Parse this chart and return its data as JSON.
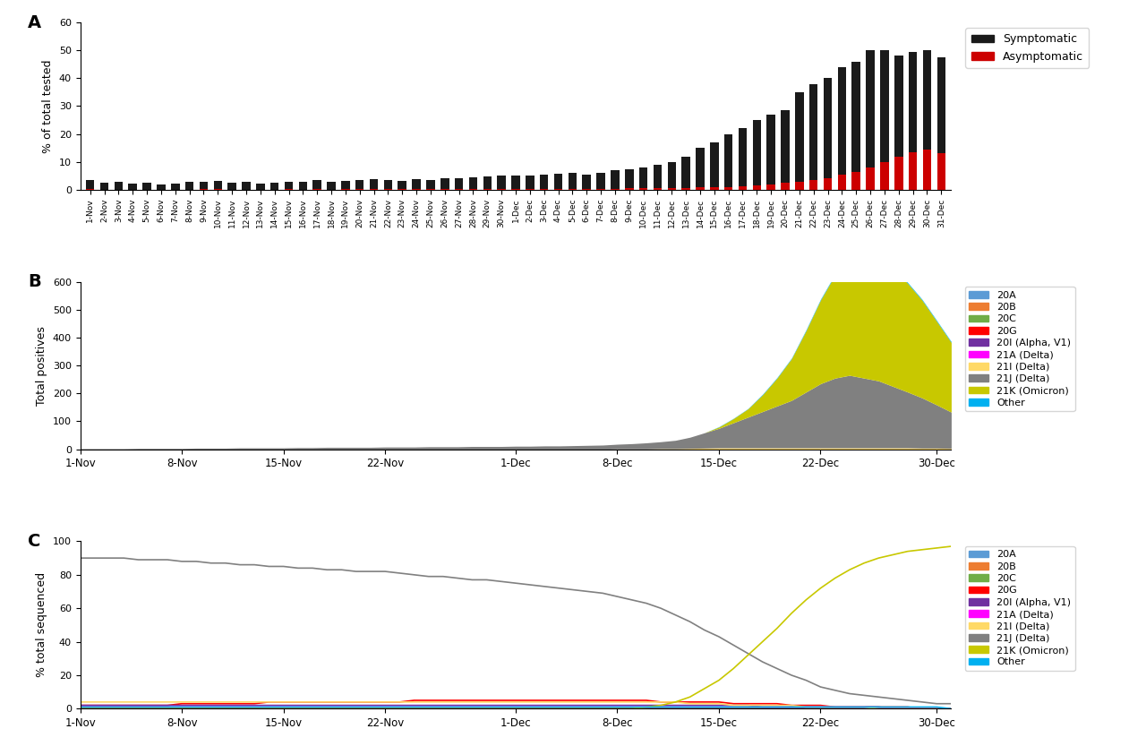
{
  "panel_A_label": "A",
  "panel_B_label": "B",
  "panel_C_label": "C",
  "ylabel_A": "% of total tested",
  "ylabel_B": "Total positives",
  "ylabel_C": "% total sequenced",
  "xlabel_BC": "",
  "symptomatic_color": "#1a1a1a",
  "asymptomatic_color": "#cc0000",
  "legend_A": [
    "Symptomatic",
    "Asymptomatic"
  ],
  "dates_A": [
    "1-Nov",
    "2-Nov",
    "3-Nov",
    "4-Nov",
    "5-Nov",
    "6-Nov",
    "7-Nov",
    "8-Nov",
    "9-Nov",
    "10-Nov",
    "11-Nov",
    "12-Nov",
    "13-Nov",
    "14-Nov",
    "15-Nov",
    "16-Nov",
    "17-Nov",
    "18-Nov",
    "19-Nov",
    "20-Nov",
    "21-Nov",
    "22-Nov",
    "23-Nov",
    "24-Nov",
    "25-Nov",
    "26-Nov",
    "27-Nov",
    "28-Nov",
    "29-Nov",
    "30-Nov",
    "1-Dec",
    "2-Dec",
    "3-Dec",
    "4-Dec",
    "5-Dec",
    "6-Dec",
    "7-Dec",
    "8-Dec",
    "9-Dec",
    "10-Dec",
    "11-Dec",
    "12-Dec",
    "13-Dec",
    "14-Dec",
    "15-Dec",
    "16-Dec",
    "17-Dec",
    "18-Dec",
    "19-Dec",
    "20-Dec",
    "21-Dec",
    "22-Dec",
    "23-Dec",
    "24-Dec",
    "25-Dec",
    "26-Dec",
    "27-Dec",
    "28-Dec",
    "29-Dec",
    "30-Dec",
    "31-Dec"
  ],
  "symptomatic_vals": [
    3.5,
    2.5,
    2.8,
    2.2,
    2.5,
    2.0,
    2.2,
    2.8,
    3.0,
    3.2,
    2.5,
    2.8,
    2.2,
    2.5,
    3.0,
    2.8,
    3.5,
    3.0,
    3.2,
    3.5,
    3.8,
    3.5,
    3.2,
    3.8,
    3.5,
    4.0,
    4.2,
    4.5,
    4.8,
    5.0,
    5.2,
    5.0,
    5.5,
    5.8,
    6.0,
    5.5,
    6.2,
    7.0,
    7.5,
    8.0,
    9.0,
    10.0,
    12.0,
    15.0,
    17.0,
    20.0,
    22.0,
    25.0,
    27.0,
    28.5,
    35.0,
    38.0,
    40.0,
    44.0,
    46.0,
    50.0,
    50.0,
    48.0,
    49.5,
    50.0,
    47.5
  ],
  "asymptomatic_vals": [
    0.2,
    0.1,
    0.1,
    0.1,
    0.1,
    0.1,
    0.1,
    0.1,
    0.2,
    0.2,
    0.1,
    0.1,
    0.1,
    0.1,
    0.2,
    0.1,
    0.2,
    0.1,
    0.2,
    0.2,
    0.2,
    0.2,
    0.2,
    0.2,
    0.2,
    0.2,
    0.3,
    0.3,
    0.3,
    0.3,
    0.3,
    0.3,
    0.3,
    0.3,
    0.4,
    0.3,
    0.4,
    0.4,
    0.5,
    0.5,
    0.5,
    0.6,
    0.7,
    0.8,
    0.9,
    1.0,
    1.2,
    1.5,
    2.0,
    2.5,
    3.0,
    3.5,
    4.0,
    5.5,
    6.5,
    8.0,
    10.0,
    12.0,
    13.5,
    14.5,
    13.0
  ],
  "xtick_labels_BC": [
    "1-Nov",
    "8-Nov",
    "15-Nov",
    "22-Nov",
    "1-Dec",
    "8-Dec",
    "15-Dec",
    "22-Dec",
    "30-Dec"
  ],
  "xtick_positions_BC": [
    0,
    7,
    14,
    21,
    30,
    37,
    44,
    51,
    59
  ],
  "variant_colors": {
    "20A": "#5b9bd5",
    "20B": "#ed7d31",
    "20C": "#70ad47",
    "20G": "#ff0000",
    "20I (Alpha, V1)": "#7030a0",
    "21A (Delta)": "#ff00ff",
    "21I (Delta)": "#ffd966",
    "21J (Delta)": "#808080",
    "21K (Omicron)": "#c8c800",
    "Other": "#00b0f0"
  },
  "variant_order": [
    "20A",
    "20B",
    "20C",
    "20G",
    "20I (Alpha, V1)",
    "21A (Delta)",
    "21I (Delta)",
    "21J (Delta)",
    "21K (Omicron)",
    "Other"
  ],
  "n_days_BC": 61,
  "total_positives": {
    "21J (Delta)": [
      2,
      2,
      2,
      2,
      3,
      3,
      3,
      3,
      4,
      4,
      4,
      5,
      5,
      5,
      5,
      6,
      6,
      7,
      7,
      7,
      7,
      8,
      8,
      8,
      9,
      9,
      9,
      10,
      10,
      10,
      11,
      11,
      12,
      12,
      13,
      14,
      15,
      17,
      19,
      22,
      25,
      30,
      40,
      55,
      70,
      90,
      110,
      130,
      150,
      170,
      200,
      230,
      250,
      260,
      250,
      240,
      220,
      200,
      180,
      155,
      130
    ],
    "21K (Omicron)": [
      0,
      0,
      0,
      0,
      0,
      0,
      0,
      0,
      0,
      0,
      0,
      0,
      0,
      0,
      0,
      0,
      0,
      0,
      0,
      0,
      0,
      0,
      0,
      0,
      0,
      0,
      0,
      0,
      0,
      0,
      0,
      0,
      0,
      0,
      0,
      0,
      0,
      0,
      0,
      0,
      0,
      0,
      0,
      0,
      5,
      15,
      30,
      60,
      100,
      150,
      220,
      300,
      370,
      400,
      420,
      430,
      420,
      390,
      350,
      300,
      250
    ],
    "20A": [
      0,
      0,
      0,
      0,
      0,
      0,
      0,
      0,
      0,
      0,
      0,
      0,
      0,
      0,
      0,
      0,
      0,
      0,
      0,
      0,
      0,
      0,
      0,
      0,
      0,
      0,
      0,
      0,
      0,
      0,
      0,
      0,
      0,
      0,
      0,
      0,
      0,
      0,
      0,
      0,
      0,
      0,
      0,
      0,
      0,
      0,
      0,
      0,
      0,
      0,
      0,
      0,
      0,
      0,
      0,
      0,
      0,
      0,
      0,
      0,
      0
    ],
    "20B": [
      0,
      0,
      0,
      0,
      0,
      0,
      0,
      0,
      0,
      0,
      0,
      0,
      0,
      0,
      0,
      0,
      0,
      0,
      0,
      0,
      0,
      0,
      0,
      0,
      0,
      0,
      0,
      0,
      0,
      0,
      0,
      0,
      0,
      0,
      0,
      0,
      0,
      0,
      0,
      0,
      0,
      0,
      0,
      0,
      0,
      0,
      0,
      0,
      0,
      0,
      0,
      0,
      0,
      0,
      0,
      0,
      0,
      0,
      0,
      0,
      0
    ],
    "20C": [
      0,
      0,
      0,
      0,
      0,
      0,
      0,
      0,
      0,
      0,
      0,
      0,
      0,
      0,
      0,
      0,
      0,
      0,
      0,
      0,
      0,
      0,
      0,
      0,
      0,
      0,
      0,
      0,
      0,
      0,
      0,
      0,
      0,
      0,
      0,
      0,
      0,
      0,
      0,
      0,
      0,
      0,
      0,
      0,
      0,
      0,
      0,
      0,
      0,
      0,
      0,
      0,
      0,
      0,
      0,
      0,
      0,
      0,
      0,
      0,
      0
    ],
    "20G": [
      0,
      0,
      0,
      0,
      0,
      0,
      0,
      0,
      0,
      0,
      0,
      0,
      0,
      0,
      0,
      0,
      0,
      0,
      0,
      0,
      0,
      0,
      0,
      0,
      0,
      0,
      0,
      0,
      0,
      0,
      0,
      0,
      0,
      0,
      0,
      0,
      0,
      0,
      0,
      0,
      0,
      0,
      0,
      0,
      0,
      0,
      0,
      0,
      0,
      0,
      0,
      0,
      0,
      0,
      0,
      0,
      0,
      0,
      0,
      0,
      0
    ],
    "20I (Alpha, V1)": [
      0,
      0,
      0,
      0,
      0,
      0,
      0,
      0,
      0,
      0,
      0,
      0,
      0,
      0,
      0,
      0,
      0,
      0,
      0,
      0,
      0,
      0,
      0,
      0,
      0,
      0,
      0,
      0,
      0,
      0,
      0,
      0,
      0,
      0,
      0,
      0,
      0,
      0,
      0,
      0,
      0,
      0,
      0,
      0,
      0,
      0,
      0,
      0,
      0,
      0,
      0,
      0,
      0,
      0,
      0,
      0,
      0,
      0,
      0,
      0,
      0
    ],
    "21A (Delta)": [
      0,
      0,
      0,
      0,
      0,
      0,
      0,
      0,
      0,
      0,
      0,
      0,
      0,
      0,
      0,
      0,
      0,
      0,
      0,
      0,
      0,
      0,
      0,
      0,
      0,
      0,
      0,
      0,
      0,
      0,
      0,
      0,
      0,
      0,
      0,
      0,
      0,
      0,
      0,
      0,
      0,
      0,
      0,
      0,
      0,
      0,
      0,
      0,
      0,
      0,
      0,
      0,
      0,
      0,
      0,
      0,
      0,
      0,
      0,
      0,
      0
    ],
    "21I (Delta)": [
      0,
      0,
      0,
      0,
      0,
      0,
      0,
      0,
      0,
      0,
      0,
      0,
      0,
      0,
      0,
      0,
      0,
      0,
      0,
      0,
      0,
      0,
      0,
      0,
      0,
      0,
      0,
      0,
      0,
      0,
      0,
      0,
      0,
      0,
      0,
      0,
      0,
      1,
      1,
      1,
      2,
      2,
      3,
      4,
      5,
      5,
      5,
      5,
      5,
      5,
      5,
      5,
      5,
      5,
      5,
      5,
      5,
      5,
      4,
      4,
      3
    ],
    "Other": [
      0,
      0,
      0,
      0,
      0,
      0,
      0,
      0,
      0,
      0,
      0,
      0,
      0,
      0,
      0,
      0,
      0,
      0,
      0,
      0,
      0,
      0,
      0,
      0,
      0,
      0,
      0,
      0,
      0,
      0,
      0,
      0,
      0,
      0,
      0,
      0,
      0,
      0,
      0,
      0,
      0,
      0,
      0,
      0,
      1,
      1,
      1,
      2,
      2,
      2,
      3,
      3,
      3,
      3,
      3,
      3,
      3,
      3,
      3,
      3,
      3
    ]
  },
  "pct_sequenced": {
    "21J (Delta)": [
      90,
      90,
      90,
      90,
      89,
      89,
      89,
      88,
      88,
      87,
      87,
      86,
      86,
      85,
      85,
      84,
      84,
      83,
      83,
      82,
      82,
      82,
      81,
      80,
      79,
      79,
      78,
      77,
      77,
      76,
      75,
      74,
      73,
      72,
      71,
      70,
      69,
      67,
      65,
      63,
      60,
      56,
      52,
      47,
      43,
      38,
      33,
      28,
      24,
      20,
      17,
      13,
      11,
      9,
      8,
      7,
      6,
      5,
      4,
      3,
      3
    ],
    "21K (Omicron)": [
      0,
      0,
      0,
      0,
      0,
      0,
      0,
      0,
      0,
      0,
      0,
      0,
      0,
      0,
      0,
      0,
      0,
      0,
      0,
      0,
      0,
      0,
      0,
      0,
      0,
      0,
      0,
      0,
      0,
      0,
      0,
      0,
      0,
      0,
      0,
      0,
      0,
      0,
      0,
      1,
      2,
      4,
      7,
      12,
      17,
      24,
      32,
      40,
      48,
      57,
      65,
      72,
      78,
      83,
      87,
      90,
      92,
      94,
      95,
      96,
      97
    ],
    "20A": [
      0,
      0,
      0,
      0,
      0,
      0,
      0,
      0,
      0,
      0,
      0,
      0,
      0,
      0,
      0,
      0,
      0,
      0,
      0,
      0,
      0,
      0,
      0,
      0,
      0,
      0,
      0,
      0,
      0,
      0,
      0,
      0,
      0,
      0,
      0,
      0,
      0,
      0,
      0,
      0,
      0,
      0,
      0,
      0,
      0,
      0,
      0,
      0,
      0,
      0,
      0,
      0,
      0,
      0,
      0,
      0,
      0,
      0,
      0,
      0,
      0
    ],
    "20B": [
      0,
      0,
      0,
      0,
      0,
      0,
      0,
      0,
      0,
      0,
      0,
      0,
      0,
      0,
      0,
      0,
      0,
      0,
      0,
      0,
      0,
      0,
      0,
      0,
      0,
      0,
      0,
      0,
      0,
      0,
      0,
      0,
      0,
      0,
      0,
      0,
      0,
      0,
      0,
      0,
      0,
      0,
      0,
      0,
      0,
      0,
      0,
      0,
      0,
      0,
      0,
      0,
      0,
      0,
      0,
      0,
      0,
      0,
      0,
      0,
      0
    ],
    "20C": [
      0,
      0,
      0,
      0,
      0,
      0,
      0,
      0,
      0,
      0,
      0,
      0,
      0,
      0,
      0,
      0,
      0,
      0,
      0,
      0,
      0,
      0,
      0,
      0,
      0,
      0,
      0,
      0,
      0,
      0,
      0,
      0,
      0,
      0,
      0,
      0,
      0,
      0,
      0,
      0,
      0,
      0,
      0,
      0,
      0,
      0,
      0,
      0,
      0,
      0,
      0,
      0,
      0,
      0,
      0,
      0,
      0,
      0,
      0,
      0,
      0
    ],
    "20G": [
      2,
      2,
      2,
      2,
      2,
      2,
      2,
      3,
      3,
      3,
      3,
      3,
      3,
      4,
      4,
      4,
      4,
      4,
      4,
      4,
      4,
      4,
      4,
      5,
      5,
      5,
      5,
      5,
      5,
      5,
      5,
      5,
      5,
      5,
      5,
      5,
      5,
      5,
      5,
      5,
      4,
      4,
      4,
      4,
      4,
      3,
      3,
      3,
      3,
      2,
      2,
      2,
      1,
      1,
      1,
      1,
      1,
      1,
      0,
      0,
      0
    ],
    "20I (Alpha, V1)": [
      2,
      2,
      2,
      2,
      2,
      2,
      2,
      2,
      2,
      2,
      2,
      2,
      2,
      2,
      2,
      2,
      2,
      2,
      2,
      2,
      2,
      2,
      2,
      2,
      2,
      2,
      2,
      2,
      2,
      2,
      2,
      2,
      2,
      2,
      2,
      2,
      2,
      2,
      2,
      2,
      2,
      2,
      2,
      2,
      2,
      2,
      2,
      1,
      1,
      1,
      1,
      1,
      1,
      1,
      1,
      1,
      0,
      0,
      0,
      0,
      0
    ],
    "21A (Delta)": [
      1,
      1,
      1,
      1,
      1,
      1,
      1,
      1,
      1,
      1,
      1,
      1,
      1,
      1,
      1,
      1,
      1,
      1,
      1,
      1,
      1,
      1,
      1,
      1,
      1,
      1,
      1,
      1,
      1,
      1,
      1,
      1,
      1,
      1,
      1,
      1,
      1,
      1,
      1,
      1,
      1,
      1,
      1,
      1,
      1,
      1,
      1,
      1,
      1,
      1,
      1,
      1,
      1,
      1,
      1,
      0,
      0,
      0,
      0,
      0,
      0
    ],
    "21I (Delta)": [
      4,
      4,
      4,
      4,
      4,
      4,
      4,
      4,
      4,
      4,
      4,
      4,
      4,
      4,
      4,
      4,
      4,
      4,
      4,
      4,
      4,
      4,
      4,
      4,
      4,
      4,
      4,
      4,
      4,
      4,
      4,
      4,
      4,
      4,
      4,
      4,
      4,
      4,
      4,
      4,
      4,
      4,
      3,
      3,
      3,
      2,
      2,
      2,
      2,
      2,
      1,
      1,
      1,
      1,
      1,
      0,
      0,
      0,
      0,
      0,
      0
    ],
    "Other": [
      1,
      1,
      1,
      1,
      1,
      1,
      1,
      1,
      1,
      1,
      1,
      1,
      1,
      1,
      1,
      1,
      1,
      1,
      1,
      1,
      1,
      1,
      1,
      1,
      1,
      1,
      1,
      1,
      1,
      1,
      1,
      1,
      1,
      1,
      1,
      1,
      1,
      1,
      1,
      1,
      1,
      1,
      1,
      1,
      1,
      1,
      1,
      1,
      1,
      1,
      1,
      1,
      1,
      1,
      1,
      1,
      1,
      1,
      1,
      1,
      0
    ]
  }
}
